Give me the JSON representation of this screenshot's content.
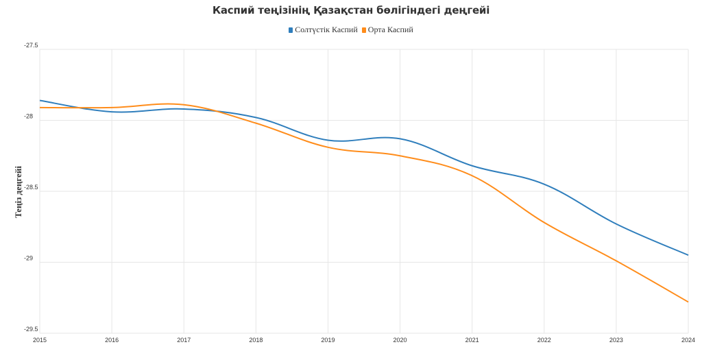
{
  "chart_data": {
    "type": "line",
    "title": "Каспий теңізінің Қазақстан бөлігіндегі деңгейі",
    "xlabel": "",
    "ylabel": "Теңіз деңгейі",
    "x": [
      2015,
      2016,
      2017,
      2018,
      2019,
      2020,
      2021,
      2022,
      2023,
      2024
    ],
    "xticks": [
      "2015",
      "2016",
      "2017",
      "2018",
      "2019",
      "2020",
      "2021",
      "2022",
      "2023",
      "2024"
    ],
    "yticks": [
      "-27.5",
      "-28",
      "-28.5",
      "-29",
      "-29.5"
    ],
    "ylim": [
      -29.5,
      -27.5
    ],
    "grid": true,
    "legend_position": "top-center",
    "series": [
      {
        "name": "Солтүстік Каспий",
        "color": "#2f7ebc",
        "values": [
          -27.86,
          -27.94,
          -27.92,
          -27.98,
          -28.14,
          -28.13,
          -28.32,
          -28.45,
          -28.73,
          -28.95
        ]
      },
      {
        "name": "Орта Каспий",
        "color": "#ff8c1a",
        "values": [
          -27.91,
          -27.91,
          -27.89,
          -28.02,
          -28.19,
          -28.25,
          -28.39,
          -28.72,
          -28.99,
          -29.28
        ]
      }
    ]
  }
}
